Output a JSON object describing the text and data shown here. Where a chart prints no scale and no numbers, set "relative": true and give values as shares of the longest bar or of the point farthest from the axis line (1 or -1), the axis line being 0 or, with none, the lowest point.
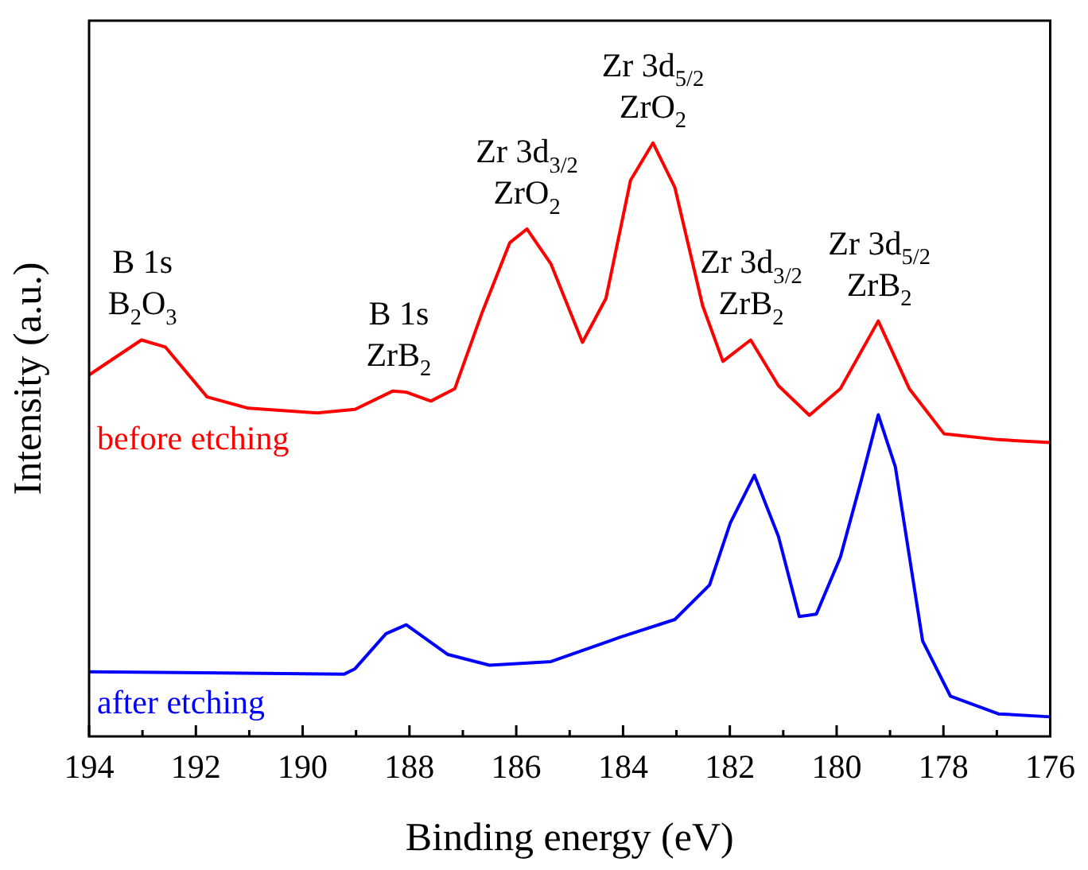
{
  "chart_data": {
    "type": "line",
    "relative": true,
    "xlabel": "Binding energy (eV)",
    "ylabel": "Intensity (a.u.)",
    "xlim": [
      194,
      176
    ],
    "xticks": [
      194,
      192,
      190,
      188,
      186,
      184,
      182,
      180,
      178,
      176
    ],
    "tick_labels": "x",
    "grid": false,
    "legend": false,
    "marker": "none",
    "line_style": "solid",
    "series": [
      {
        "name": "before etching",
        "color": "#ff0000",
        "x": [
          194,
          193.02,
          192.57,
          191.79,
          191.02,
          189.73,
          189.02,
          188.31,
          188.06,
          187.6,
          187.15,
          186.64,
          186.12,
          185.8,
          185.35,
          184.76,
          184.32,
          183.86,
          183.44,
          183.03,
          182.51,
          182.13,
          181.61,
          181.09,
          180.51,
          179.93,
          179.22,
          178.64,
          177.99,
          176.97,
          176
        ],
        "values": [
          0.609,
          0.668,
          0.656,
          0.572,
          0.553,
          0.545,
          0.551,
          0.582,
          0.58,
          0.565,
          0.586,
          0.714,
          0.832,
          0.855,
          0.796,
          0.664,
          0.738,
          0.937,
          1.0,
          0.925,
          0.726,
          0.632,
          0.668,
          0.591,
          0.541,
          0.586,
          0.7,
          0.586,
          0.51,
          0.5,
          0.495
        ]
      },
      {
        "name": "after etching",
        "color": "#0000ff",
        "x": [
          194,
          189.22,
          189.02,
          188.44,
          188.06,
          187.28,
          186.5,
          185.35,
          184.06,
          183.03,
          182.38,
          181.99,
          181.54,
          181.09,
          180.7,
          180.38,
          179.93,
          179.54,
          179.22,
          178.9,
          178.39,
          177.87,
          176.97,
          176
        ],
        "values": [
          0.109,
          0.105,
          0.114,
          0.173,
          0.188,
          0.138,
          0.12,
          0.126,
          0.167,
          0.197,
          0.255,
          0.36,
          0.44,
          0.337,
          0.202,
          0.206,
          0.302,
          0.431,
          0.542,
          0.454,
          0.161,
          0.068,
          0.038,
          0.033
        ]
      }
    ],
    "annotations": [
      {
        "text": "B 1s\nB$_{2}$O$_{3}$",
        "x": 193.0,
        "y": 0.668
      },
      {
        "text": "B 1s\nZrB$_{2}$",
        "x": 188.2,
        "y": 0.582
      },
      {
        "text": "Zr 3d$_{3/2}$\nZrO$_{2}$",
        "x": 185.8,
        "y": 0.855
      },
      {
        "text": "Zr 3d$_{5/2}$\nZrO$_{2}$",
        "x": 183.44,
        "y": 1.0
      },
      {
        "text": "Zr 3d$_{3/2}$\nZrB$_{2}$",
        "x": 181.6,
        "y": 0.668
      },
      {
        "text": "Zr 3d$_{5/2}$\nZrB$_{2}$",
        "x": 179.2,
        "y": 0.7
      }
    ]
  }
}
